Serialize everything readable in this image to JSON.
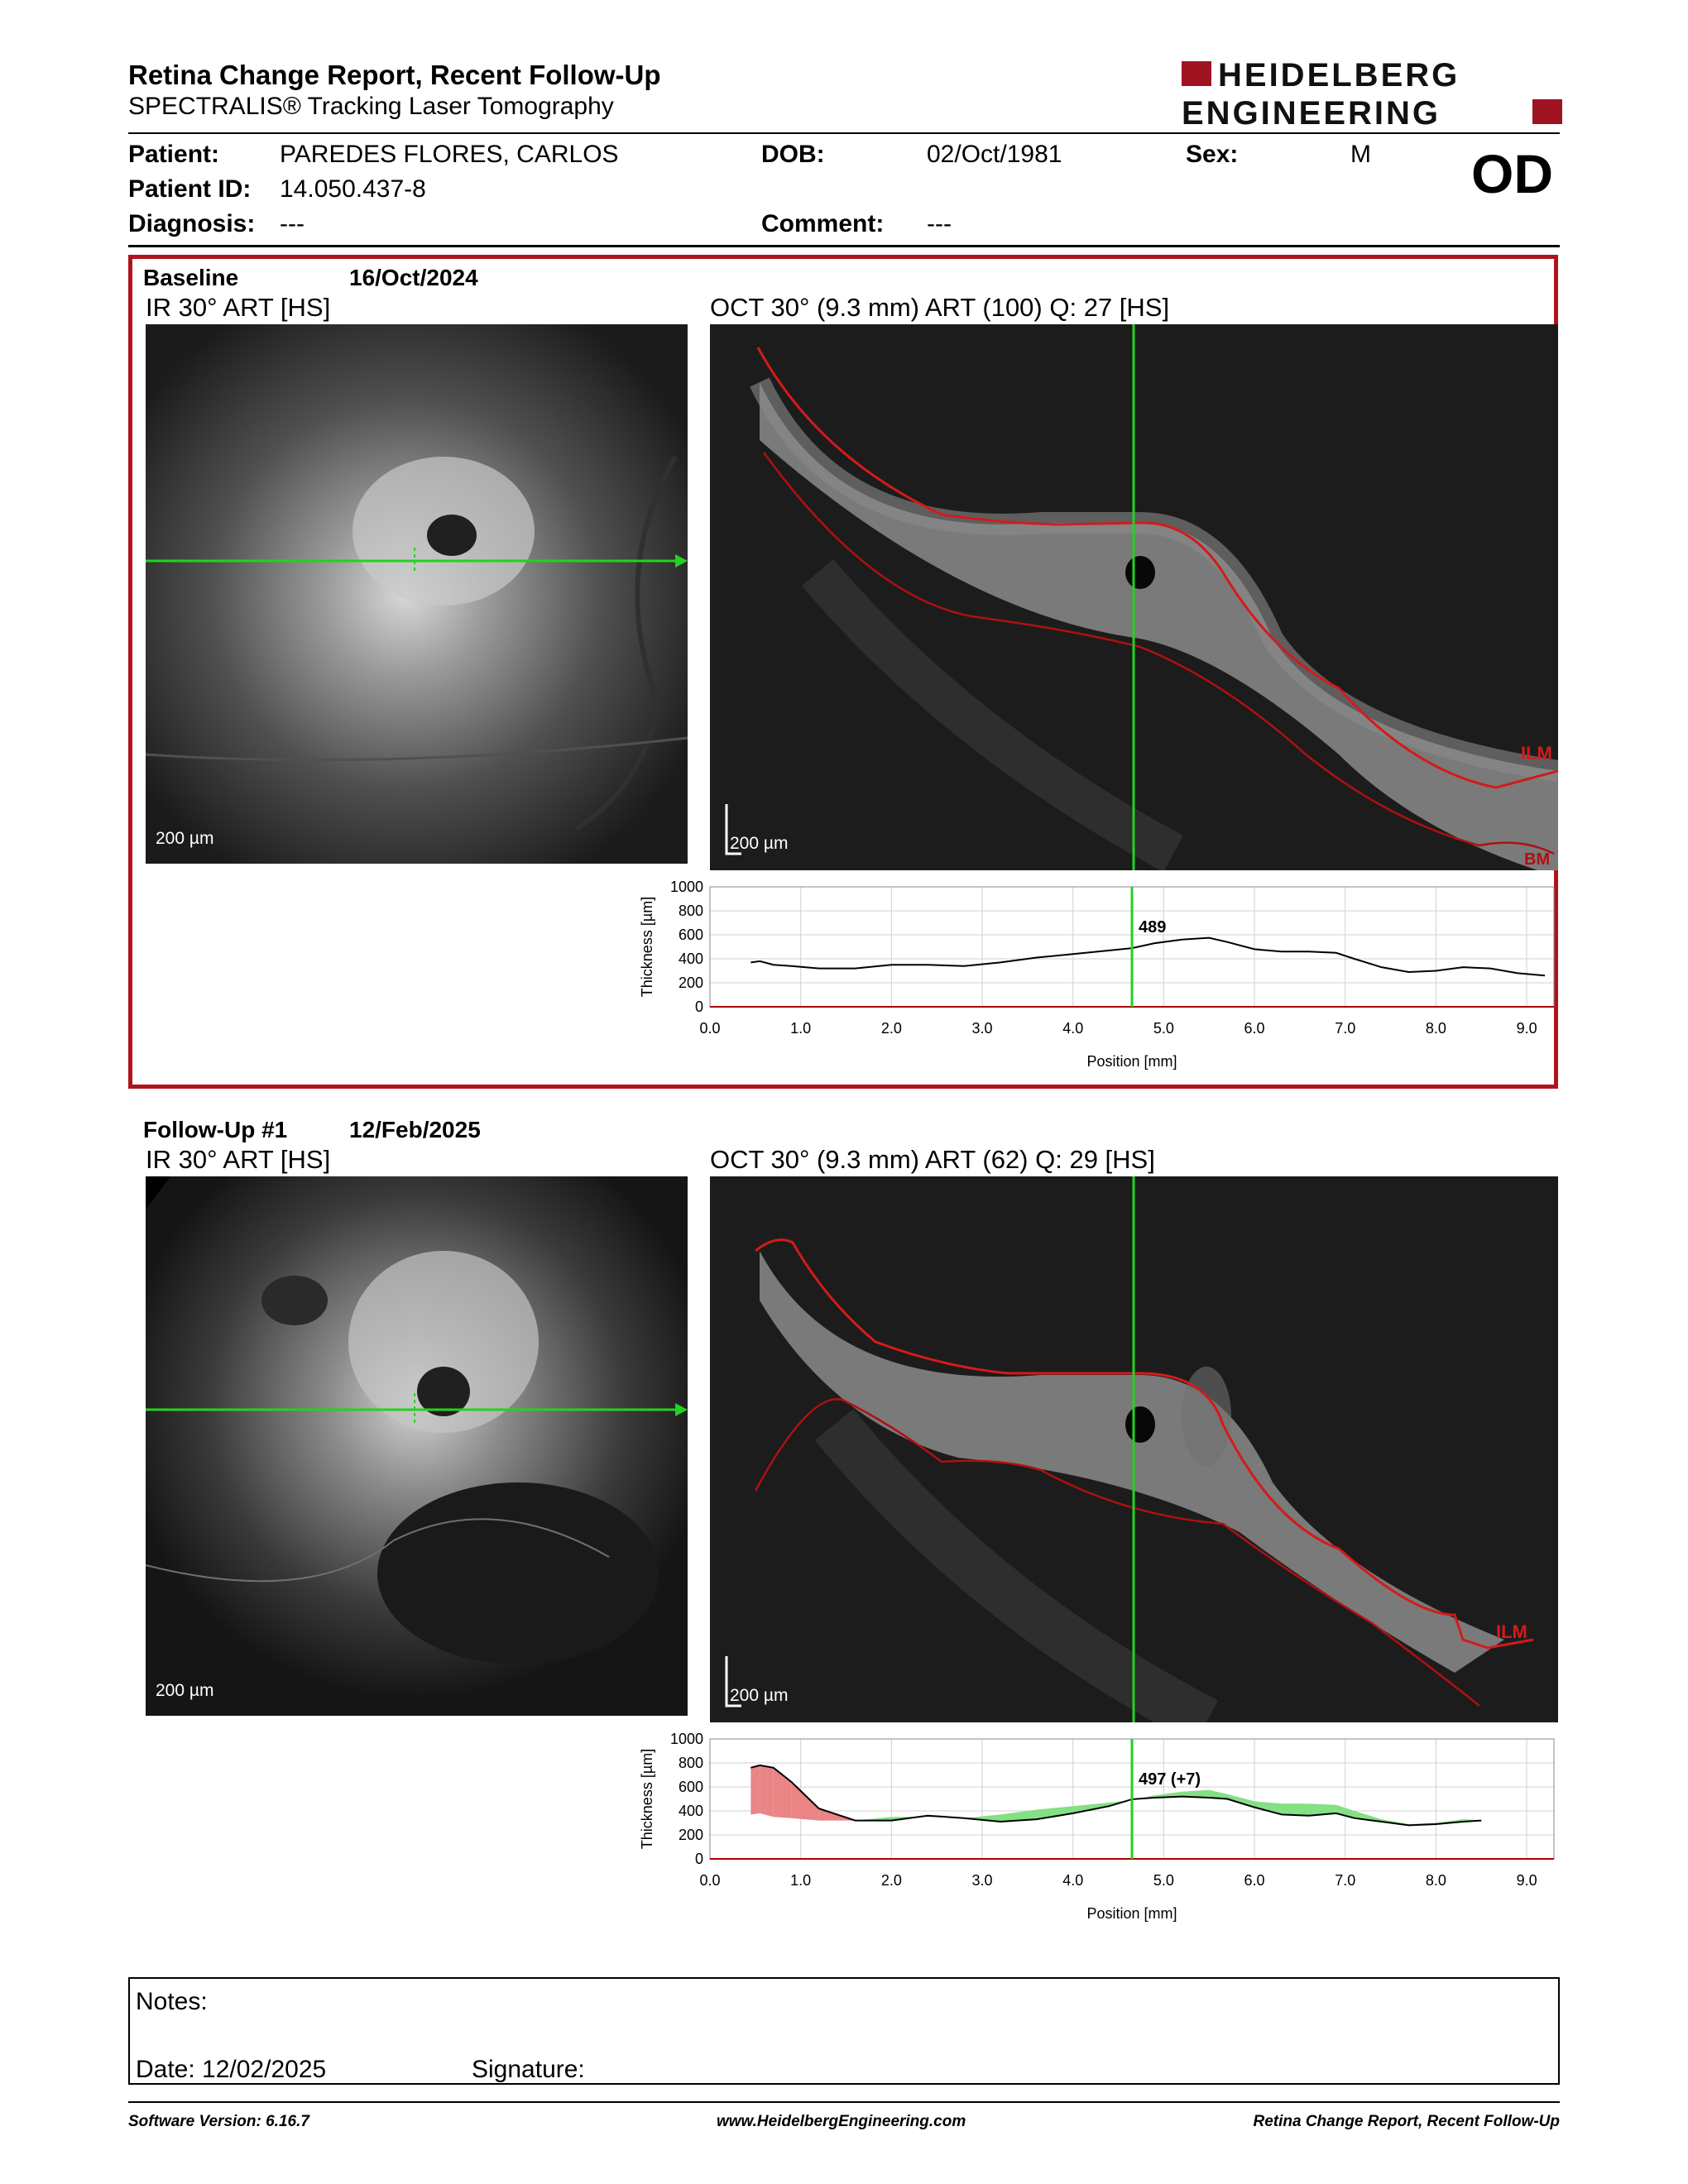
{
  "header": {
    "title": "Retina Change Report, Recent Follow-Up",
    "subtitle": "SPECTRALIS® Tracking Laser Tomography",
    "logo_line1": "HEIDELBERG",
    "logo_line2": "ENGINEERING",
    "eye": "OD"
  },
  "patient": {
    "patient_label": "Patient:",
    "patient_value": "PAREDES FLORES, CARLOS",
    "id_label": "Patient ID:",
    "id_value": "14.050.437-8",
    "diagnosis_label": "Diagnosis:",
    "diagnosis_value": "---",
    "dob_label": "DOB:",
    "dob_value": "02/Oct/1981",
    "sex_label": "Sex:",
    "sex_value": "M",
    "comment_label": "Comment:",
    "comment_value": "---"
  },
  "exams": [
    {
      "label": "Baseline",
      "date": "16/Oct/2024",
      "ir_title": "IR 30° ART [HS]",
      "oct_title": "OCT 30° (9.3 mm) ART (100) Q: 27 [HS]",
      "scale_label": "200 µm",
      "ilm_label": "ILM",
      "bm_label": "BM",
      "cursor_value": "489"
    },
    {
      "label": "Follow-Up #1",
      "date": "12/Feb/2025",
      "ir_title": "IR 30° ART [HS]",
      "oct_title": "OCT 30° (9.3 mm) ART (62) Q: 29 [HS]",
      "scale_label": "200 µm",
      "ilm_label": "ILM",
      "cursor_value": "497 (+7)"
    }
  ],
  "chart_data": [
    {
      "type": "line",
      "ylabel": "Thickness [µm]",
      "xlabel": "Position [mm]",
      "xlim": [
        0,
        9.3
      ],
      "ylim": [
        0,
        1000
      ],
      "yticks": [
        "0",
        "200",
        "400",
        "600",
        "800",
        "1000"
      ],
      "xticks": [
        "0.0",
        "1.0",
        "2.0",
        "3.0",
        "4.0",
        "5.0",
        "6.0",
        "7.0",
        "8.0",
        "9.0"
      ],
      "cursor_x": 4.65,
      "grid": true,
      "series": [
        {
          "x": [
            0.45,
            0.55,
            0.7,
            0.9,
            1.2,
            1.6,
            2.0,
            2.4,
            2.8,
            3.2,
            3.6,
            4.0,
            4.4,
            4.65,
            4.9,
            5.2,
            5.5,
            5.7,
            6.0,
            6.3,
            6.6,
            6.9,
            7.1,
            7.4,
            7.7,
            8.0,
            8.3,
            8.6,
            8.9,
            9.2
          ],
          "y": [
            370,
            380,
            350,
            340,
            320,
            320,
            350,
            350,
            340,
            370,
            410,
            440,
            470,
            489,
            530,
            560,
            575,
            540,
            480,
            460,
            460,
            450,
            400,
            330,
            290,
            300,
            330,
            320,
            280,
            260
          ]
        }
      ]
    },
    {
      "type": "line",
      "ylabel": "Thickness [µm]",
      "xlabel": "Position [mm]",
      "xlim": [
        0,
        9.3
      ],
      "ylim": [
        0,
        1000
      ],
      "yticks": [
        "0",
        "200",
        "400",
        "600",
        "800",
        "1000"
      ],
      "xticks": [
        "0.0",
        "1.0",
        "2.0",
        "3.0",
        "4.0",
        "5.0",
        "6.0",
        "7.0",
        "8.0",
        "9.0"
      ],
      "cursor_x": 4.65,
      "grid": true,
      "increase_color": "#e98585",
      "decrease_color": "#83e083",
      "series": [
        {
          "x": [
            0.45,
            0.55,
            0.7,
            0.9,
            1.2,
            1.6,
            2.0,
            2.4,
            2.8,
            3.2,
            3.6,
            4.0,
            4.4,
            4.65,
            4.9,
            5.2,
            5.5,
            5.7,
            6.0,
            6.3,
            6.6,
            6.9,
            7.1,
            7.4,
            7.7,
            8.0,
            8.3,
            8.5
          ],
          "y": [
            760,
            780,
            760,
            640,
            420,
            320,
            320,
            360,
            340,
            310,
            330,
            380,
            440,
            497,
            510,
            520,
            510,
            500,
            430,
            370,
            360,
            380,
            340,
            310,
            280,
            290,
            310,
            320
          ]
        }
      ]
    }
  ],
  "notes": {
    "notes_label": "Notes:",
    "date_label": "Date: 12/02/2025",
    "signature_label": "Signature:"
  },
  "footer": {
    "software": "Software Version: 6.16.7",
    "website": "www.HeidelbergEngineering.com",
    "report_name": "Retina Change Report, Recent Follow-Up"
  }
}
